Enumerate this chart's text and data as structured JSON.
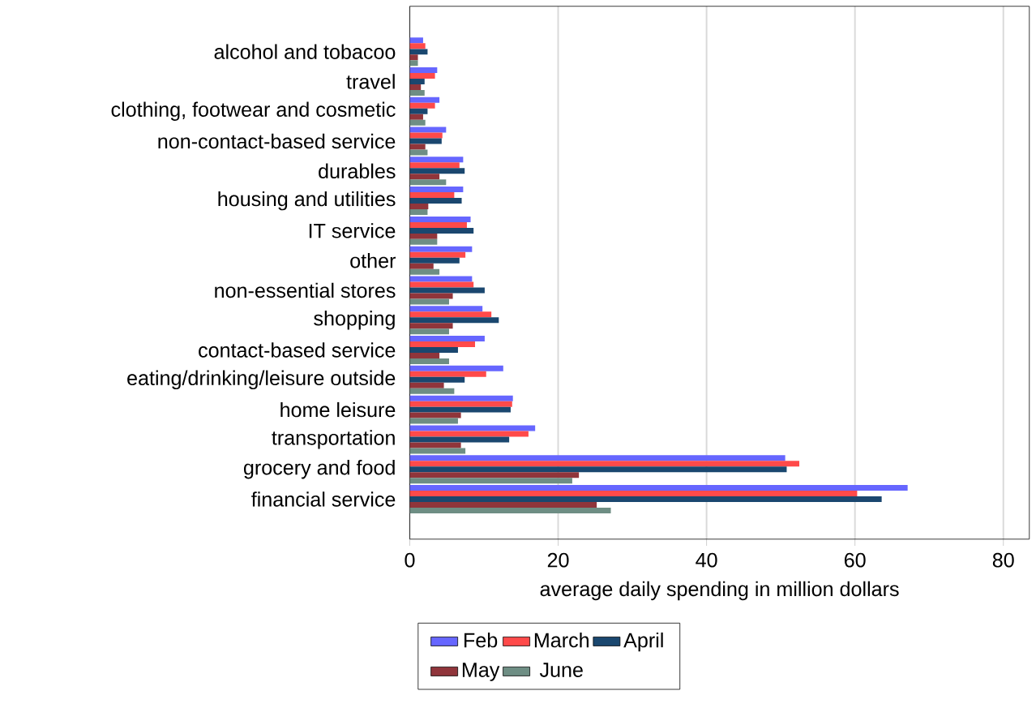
{
  "chart_data": {
    "type": "bar",
    "orientation": "horizontal",
    "xlabel": "average daily spending in million dollars",
    "categories": [
      "alcohol and tobacoo",
      "travel",
      "clothing, footwear and cosmetic",
      "non-contact-based service",
      "durables",
      "housing and utilities",
      "IT service",
      "other",
      "non-essential stores",
      "shopping",
      "contact-based service",
      "eating/drinking/leisure outside",
      "home leisure",
      "transportation",
      "grocery and food",
      "financial service"
    ],
    "series": [
      {
        "name": "Feb",
        "color": "#6666ff",
        "values": [
          1.8,
          3.7,
          4.0,
          4.9,
          7.2,
          7.2,
          8.2,
          8.4,
          8.4,
          9.8,
          10.1,
          12.6,
          13.9,
          16.9,
          50.6,
          67.1
        ]
      },
      {
        "name": "March",
        "color": "#ff4a4a",
        "values": [
          2.1,
          3.4,
          3.4,
          4.4,
          6.7,
          6.0,
          7.7,
          7.5,
          8.6,
          11.0,
          8.8,
          10.3,
          13.8,
          16.0,
          52.5,
          60.3
        ]
      },
      {
        "name": "April",
        "color": "#1a476f",
        "values": [
          2.4,
          2.0,
          2.4,
          4.3,
          7.4,
          7.0,
          8.6,
          6.7,
          10.1,
          12.0,
          6.5,
          7.4,
          13.6,
          13.4,
          50.8,
          63.6
        ]
      },
      {
        "name": "May",
        "color": "#90353b",
        "values": [
          1.1,
          1.5,
          1.8,
          2.1,
          4.0,
          2.5,
          3.7,
          3.2,
          5.8,
          5.8,
          4.0,
          4.6,
          6.9,
          6.9,
          22.8,
          25.2
        ]
      },
      {
        "name": "June",
        "color": "#6e8e84",
        "values": [
          1.1,
          2.0,
          2.1,
          2.4,
          4.9,
          2.4,
          3.7,
          4.0,
          5.3,
          5.3,
          5.3,
          6.0,
          6.5,
          7.5,
          21.9,
          27.1
        ]
      }
    ],
    "xlim": [
      0,
      83.5
    ],
    "xticks": [
      0,
      20,
      40,
      60,
      80
    ],
    "grid": "x",
    "legend": "bottom"
  }
}
